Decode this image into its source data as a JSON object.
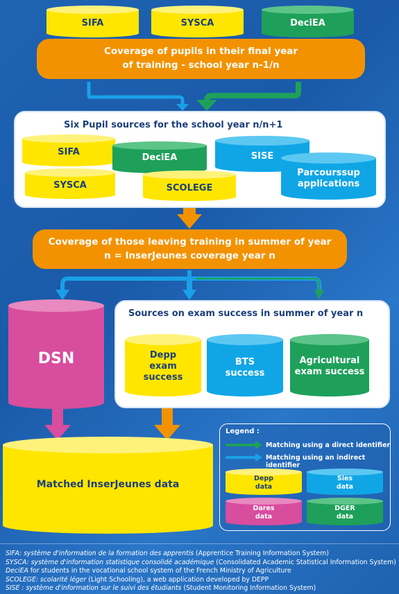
{
  "top_sources": [
    "SIFA",
    "SYSCA",
    "DeciEA"
  ],
  "coverage_final_year": "Coverage of pupils in their final year of training - school year n-1/n",
  "six_sources": {
    "title": "Six Pupil sources for the school year n/n+1",
    "items": [
      "SIFA",
      "DeciEA",
      "SISE",
      "SYSCA",
      "SCOLEGE",
      "Parcourssup applications"
    ]
  },
  "coverage_leaving": "Coverage of those leaving training in summer of year n = InserJeunes coverage year n",
  "dsn_label": "DSN",
  "exam_panel": {
    "title": "Sources on exam success in summer of year n",
    "items": [
      "Depp exam success",
      "BTS success",
      "Agricultural exam success"
    ]
  },
  "matched_label": "Matched InserJeunes data",
  "legend": {
    "title": "Legend :",
    "direct": "Matching using a direct identifier",
    "indirect": "Matching using an indirect identifier",
    "cylinders": [
      "Depp data",
      "Sies data",
      "Dares data",
      "DGER data"
    ]
  },
  "footnotes": [
    {
      "term": "SIFA: système d'information de la formation des apprentis",
      "gloss": "(Apprentice Training Information System)"
    },
    {
      "term": "SYSCA: système d'information statistique consolidé académique",
      "gloss": "(Consolidated Academic Statistical Information System)"
    },
    {
      "term": "DeciEA",
      "gloss": "for students in the vocational school system of the French Ministry of Agriculture"
    },
    {
      "term": "SCOLEGE: scolarité léger",
      "gloss": "(Light Schooling), a web application developed by DEPP"
    },
    {
      "term": "SISE : système d'information sur le suivi des étudiants",
      "gloss": "(Student Monitoring Information System)"
    }
  ],
  "colors": {
    "yellow": "#ffe600",
    "green": "#1ea05a",
    "cyan": "#10a6e6",
    "pink": "#d84d9e",
    "orange": "#f39200",
    "navy": "#1b3f7a"
  }
}
